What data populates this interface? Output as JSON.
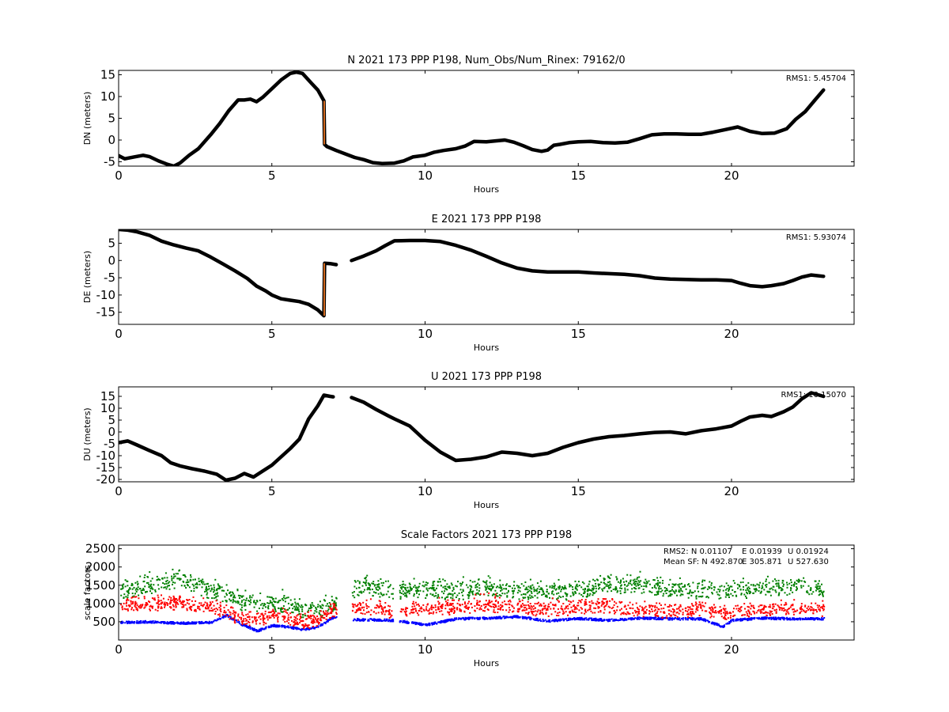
{
  "chart_data": [
    {
      "type": "line",
      "title": "N 2021 173 PPP  P198, Num_Obs/Num_Rinex: 79162/0",
      "xlabel": "Hours",
      "ylabel": "DN (meters)",
      "xlim": [
        0,
        24
      ],
      "ylim": [
        -6,
        16
      ],
      "xticks": [
        0,
        5,
        10,
        15,
        20
      ],
      "yticks": [
        -5,
        0,
        5,
        10,
        15
      ],
      "rms_label": "RMS1:  5.45704",
      "grid": false,
      "series": [
        {
          "color": "#000000",
          "gap_after": [
            6.7,
            7.7
          ],
          "x": [
            0,
            0.2,
            0.5,
            0.8,
            1.0,
            1.3,
            1.6,
            1.8,
            2.0,
            2.3,
            2.6,
            3.0,
            3.3,
            3.6,
            3.9,
            4.1,
            4.3,
            4.5,
            4.7,
            5.0,
            5.3,
            5.6,
            5.8,
            6.0,
            6.3,
            6.5,
            6.7,
            6.72,
            6.8,
            7.1,
            7.7,
            8.0,
            8.3,
            8.6,
            9.0,
            9.3,
            9.6,
            10.0,
            10.3,
            10.6,
            11.0,
            11.3,
            11.6,
            12.0,
            12.3,
            12.6,
            12.9,
            13.2,
            13.5,
            13.8,
            14.0,
            14.2,
            14.4,
            14.7,
            15.0,
            15.4,
            15.8,
            16.2,
            16.6,
            17.0,
            17.4,
            17.8,
            18.2,
            18.6,
            19.0,
            19.4,
            19.8,
            20.2,
            20.6,
            21.0,
            21.4,
            21.8,
            22.1,
            22.4,
            22.7,
            23.0
          ],
          "y": [
            -3.6,
            -4.3,
            -3.9,
            -3.5,
            -3.8,
            -4.8,
            -5.6,
            -6.0,
            -5.3,
            -3.5,
            -2.0,
            1.2,
            3.8,
            6.8,
            9.2,
            9.2,
            9.4,
            8.8,
            9.8,
            11.8,
            13.8,
            15.3,
            15.6,
            15.3,
            13.0,
            11.5,
            9.0,
            -1.0,
            -1.5,
            -2.4,
            -4.0,
            -4.5,
            -5.2,
            -5.4,
            -5.3,
            -4.8,
            -3.9,
            -3.5,
            -2.8,
            -2.4,
            -2.0,
            -1.4,
            -0.3,
            -0.4,
            -0.2,
            0.0,
            -0.5,
            -1.3,
            -2.2,
            -2.6,
            -2.3,
            -1.2,
            -1.0,
            -0.6,
            -0.4,
            -0.3,
            -0.6,
            -0.7,
            -0.5,
            0.3,
            1.2,
            1.4,
            1.4,
            1.3,
            1.3,
            1.8,
            2.4,
            3.0,
            2.0,
            1.5,
            1.6,
            2.6,
            4.8,
            6.5,
            9.0,
            11.5
          ]
        }
      ]
    },
    {
      "type": "line",
      "title": "E 2021 173 PPP  P198",
      "xlabel": "Hours",
      "ylabel": "DE (meters)",
      "xlim": [
        0,
        24
      ],
      "ylim": [
        -18.5,
        9
      ],
      "xticks": [
        0,
        5,
        10,
        15,
        20
      ],
      "yticks": [
        -15,
        -10,
        -5,
        0,
        5
      ],
      "rms_label": "RMS1:  5.93074",
      "grid": false,
      "series": [
        {
          "color": "#000000",
          "gap_after": [
            7.1,
            7.6
          ],
          "x": [
            0,
            0.3,
            0.6,
            1.0,
            1.4,
            1.8,
            2.2,
            2.6,
            3.0,
            3.4,
            3.8,
            4.2,
            4.5,
            4.8,
            5.0,
            5.3,
            5.6,
            5.9,
            6.2,
            6.5,
            6.7,
            6.72,
            6.9,
            7.1,
            7.6,
            8.0,
            8.4,
            8.7,
            9.0,
            9.5,
            10.0,
            10.5,
            11.0,
            11.5,
            12.0,
            12.5,
            13.0,
            13.5,
            14.0,
            14.5,
            15.0,
            15.5,
            16.0,
            16.5,
            17.0,
            17.5,
            18.0,
            18.5,
            19.0,
            19.5,
            20.0,
            20.3,
            20.6,
            21.0,
            21.3,
            21.7,
            22.0,
            22.3,
            22.6,
            23.0
          ],
          "y": [
            9.0,
            8.8,
            8.3,
            7.3,
            5.6,
            4.5,
            3.6,
            2.8,
            1.0,
            -1.0,
            -3.0,
            -5.2,
            -7.4,
            -8.8,
            -10.0,
            -11.1,
            -11.5,
            -11.9,
            -12.7,
            -14.3,
            -16.0,
            -0.8,
            -0.9,
            -1.2,
            0.0,
            1.3,
            2.8,
            4.3,
            5.7,
            5.8,
            5.8,
            5.5,
            4.4,
            3.0,
            1.2,
            -0.7,
            -2.2,
            -3.0,
            -3.3,
            -3.3,
            -3.3,
            -3.6,
            -3.8,
            -4.0,
            -4.4,
            -5.1,
            -5.4,
            -5.5,
            -5.6,
            -5.6,
            -5.8,
            -6.6,
            -7.3,
            -7.6,
            -7.3,
            -6.7,
            -5.8,
            -4.8,
            -4.2,
            -4.6
          ]
        }
      ]
    },
    {
      "type": "line",
      "title": "U 2021 173 PPP  P198",
      "xlabel": "Hours",
      "ylabel": "DU (meters)",
      "xlim": [
        0,
        24
      ],
      "ylim": [
        -21,
        19
      ],
      "xticks": [
        0,
        5,
        10,
        15,
        20
      ],
      "yticks": [
        -20,
        -15,
        -10,
        -5,
        0,
        5,
        10,
        15
      ],
      "rms_label": "RMS1: 10.15070",
      "grid": false,
      "series": [
        {
          "color": "#000000",
          "gap_after": [
            7.0,
            7.6
          ],
          "x": [
            0,
            0.3,
            0.6,
            1.0,
            1.4,
            1.7,
            2.0,
            2.4,
            2.8,
            3.2,
            3.5,
            3.8,
            4.1,
            4.4,
            4.7,
            5.0,
            5.3,
            5.6,
            5.9,
            6.2,
            6.5,
            6.7,
            6.9,
            7.0,
            7.6,
            8.0,
            8.4,
            8.8,
            9.0,
            9.5,
            10.0,
            10.5,
            11.0,
            11.5,
            12.0,
            12.5,
            13.0,
            13.5,
            14.0,
            14.5,
            15.0,
            15.5,
            16.0,
            16.5,
            17.0,
            17.5,
            18.0,
            18.5,
            19.0,
            19.5,
            20.0,
            20.3,
            20.6,
            21.0,
            21.3,
            21.7,
            22.0,
            22.3,
            22.6,
            23.0
          ],
          "y": [
            -4.5,
            -3.8,
            -5.5,
            -7.8,
            -10.0,
            -13.0,
            -14.3,
            -15.5,
            -16.5,
            -17.8,
            -20.3,
            -19.5,
            -17.5,
            -19.0,
            -16.5,
            -14.0,
            -10.5,
            -7.0,
            -3.0,
            5.5,
            11.0,
            15.5,
            15.0,
            14.8,
            14.5,
            12.5,
            9.5,
            6.8,
            5.5,
            2.5,
            -3.5,
            -8.5,
            -12.0,
            -11.5,
            -10.5,
            -8.5,
            -9.0,
            -10.0,
            -9.0,
            -6.5,
            -4.5,
            -3.0,
            -2.0,
            -1.5,
            -0.8,
            -0.2,
            0.0,
            -0.8,
            0.5,
            1.3,
            2.5,
            4.5,
            6.3,
            7.0,
            6.5,
            8.5,
            10.5,
            14.0,
            16.5,
            15.0
          ]
        }
      ]
    },
    {
      "type": "scatter",
      "title": "Scale Factors 2021 173 PPP  P198",
      "xlabel": "Hours",
      "ylabel": "scale factors",
      "xlim": [
        0,
        24
      ],
      "ylim": [
        0,
        2600
      ],
      "xticks": [
        0,
        5,
        10,
        15,
        20
      ],
      "yticks": [
        500,
        1000,
        1500,
        2000,
        2500
      ],
      "grid": false,
      "gaps": [
        [
          7.1,
          7.6
        ],
        [
          8.95,
          9.15
        ]
      ],
      "annotations": {
        "rms2_prefix": "RMS2: N  0.01107",
        "rms2_e": "E  0.01939",
        "rms2_u": "U  0.01924",
        "mean_prefix": "Mean SF: N 492.870",
        "mean_e": "E 305.871",
        "mean_u": "U 527.630"
      },
      "series": [
        {
          "color": "#0000ff",
          "x": [
            0,
            1,
            2,
            3,
            3.5,
            4,
            4.5,
            5,
            5.5,
            6,
            6.5,
            7,
            7.6,
            9,
            10,
            11,
            12,
            13,
            14,
            15,
            16,
            17,
            18,
            19,
            19.7,
            20,
            21,
            22,
            23
          ],
          "y": [
            500,
            520,
            480,
            500,
            700,
            450,
            270,
            420,
            380,
            300,
            380,
            650,
            580,
            560,
            430,
            600,
            620,
            660,
            540,
            610,
            560,
            620,
            600,
            600,
            380,
            560,
            620,
            600,
            600
          ]
        },
        {
          "color": "#008000",
          "x": [
            0,
            1,
            2,
            3,
            3.5,
            4,
            4.5,
            5,
            5.5,
            6,
            6.5,
            7,
            7.6,
            8,
            9,
            10,
            11,
            12,
            13,
            14,
            15,
            16,
            17,
            18,
            19,
            20,
            21,
            22,
            23
          ],
          "y": [
            1300,
            1450,
            1650,
            1300,
            1200,
            1000,
            950,
            950,
            950,
            800,
            800,
            900,
            1300,
            1400,
            1300,
            1350,
            1300,
            1400,
            1300,
            1300,
            1300,
            1500,
            1450,
            1350,
            1300,
            1300,
            1350,
            1450,
            1300
          ]
        },
        {
          "color": "#ff0000",
          "x": [
            0,
            1,
            2,
            3,
            3.5,
            4,
            4.5,
            5,
            5.5,
            6,
            6.5,
            7,
            7.6,
            8,
            9,
            10,
            11,
            12,
            13,
            14,
            15,
            16,
            17,
            18,
            19,
            20,
            21,
            22,
            23
          ],
          "y": [
            900,
            950,
            1000,
            850,
            700,
            550,
            500,
            650,
            600,
            450,
            550,
            800,
            850,
            850,
            750,
            850,
            850,
            950,
            850,
            800,
            850,
            900,
            800,
            750,
            800,
            700,
            800,
            850,
            800
          ]
        }
      ]
    }
  ]
}
